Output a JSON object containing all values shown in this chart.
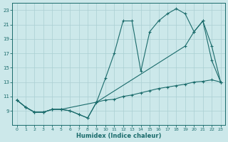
{
  "xlabel": "Humidex (Indice chaleur)",
  "xlim": [
    -0.5,
    23.5
  ],
  "ylim": [
    7,
    24
  ],
  "xticks": [
    0,
    1,
    2,
    3,
    4,
    5,
    6,
    7,
    8,
    9,
    10,
    11,
    12,
    13,
    14,
    15,
    16,
    17,
    18,
    19,
    20,
    21,
    22,
    23
  ],
  "yticks": [
    9,
    11,
    13,
    15,
    17,
    19,
    21,
    23
  ],
  "ytick_labels": [
    "9",
    "11",
    "13",
    "15",
    "17",
    "19",
    "21",
    "23"
  ],
  "bg_color": "#cce8ea",
  "grid_color": "#aacfd2",
  "line_color": "#1a6b6b",
  "line1_x": [
    0,
    1,
    2,
    3,
    4,
    5,
    6,
    7,
    8,
    9,
    10,
    11,
    12,
    13,
    14,
    15,
    16,
    17,
    18,
    19,
    20,
    21,
    22,
    23
  ],
  "line1_y": [
    10.5,
    9.5,
    8.8,
    8.8,
    9.2,
    9.2,
    9.0,
    8.5,
    8.0,
    10.2,
    10.5,
    10.6,
    11.0,
    11.2,
    11.5,
    11.8,
    12.1,
    12.3,
    12.5,
    12.7,
    13.0,
    13.1,
    13.3,
    13.0
  ],
  "line2_x": [
    0,
    1,
    2,
    3,
    4,
    5,
    6,
    7,
    8,
    9,
    10,
    11,
    12,
    13,
    14,
    15,
    16,
    17,
    18,
    19,
    20,
    21,
    22,
    23
  ],
  "line2_y": [
    10.5,
    9.5,
    8.8,
    8.8,
    9.2,
    9.2,
    9.0,
    8.5,
    8.0,
    10.2,
    13.5,
    17.0,
    21.5,
    21.5,
    14.5,
    20.0,
    21.5,
    22.5,
    23.2,
    22.5,
    20.0,
    21.5,
    18.0,
    13.0
  ],
  "line3_x": [
    0,
    1,
    2,
    3,
    4,
    5,
    9,
    19,
    20,
    21,
    22,
    23
  ],
  "line3_y": [
    10.5,
    9.5,
    8.8,
    8.8,
    9.2,
    9.2,
    10.2,
    18.0,
    20.0,
    21.5,
    16.0,
    13.0
  ]
}
